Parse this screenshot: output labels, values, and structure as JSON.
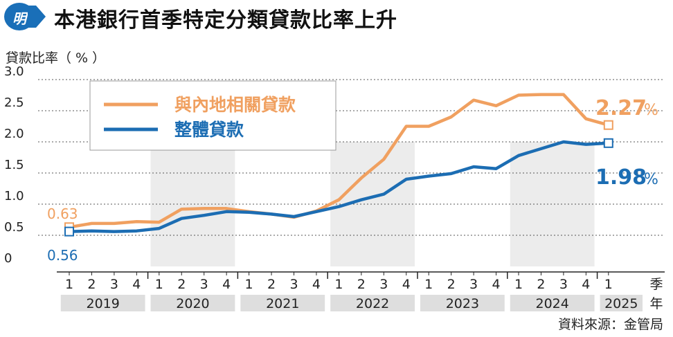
{
  "header": {
    "logo_text": "明",
    "title": "本港銀行首季特定分類貸款比率上升"
  },
  "chart_data": {
    "type": "line",
    "ylabel": "貸款比率（ % ）",
    "ylim": [
      0,
      3.0
    ],
    "yticks": [
      "3.0",
      "2.5",
      "2.0",
      "1.5",
      "1.0",
      "0.5",
      "0"
    ],
    "quarter_labels": [
      "1",
      "2",
      "3",
      "4",
      "1",
      "2",
      "3",
      "4",
      "1",
      "2",
      "3",
      "4",
      "1",
      "2",
      "3",
      "4",
      "1",
      "2",
      "3",
      "4",
      "1",
      "2",
      "3",
      "4",
      "1"
    ],
    "years": [
      "2019",
      "2020",
      "2021",
      "2022",
      "2023",
      "2024",
      "2025"
    ],
    "quarter_unit": "季",
    "year_unit": "年",
    "legend": [
      "與內地相關貸款",
      "整體貸款"
    ],
    "series": [
      {
        "name": "與內地相關貸款",
        "color": "#f0a060",
        "values": [
          0.63,
          0.69,
          0.69,
          0.72,
          0.71,
          0.92,
          0.93,
          0.93,
          0.88,
          0.84,
          0.79,
          0.89,
          1.07,
          1.42,
          1.72,
          2.25,
          2.25,
          2.4,
          2.67,
          2.58,
          2.75,
          2.76,
          2.76,
          2.37,
          2.27
        ]
      },
      {
        "name": "整體貸款",
        "color": "#1c6db3",
        "values": [
          0.56,
          0.57,
          0.56,
          0.57,
          0.61,
          0.77,
          0.82,
          0.88,
          0.87,
          0.84,
          0.8,
          0.88,
          0.96,
          1.07,
          1.16,
          1.4,
          1.45,
          1.49,
          1.6,
          1.57,
          1.78,
          1.89,
          2.0,
          1.96,
          1.98
        ]
      }
    ],
    "annotations": {
      "start_orange": "0.63",
      "start_blue": "0.56",
      "end_orange": "2.27",
      "end_blue": "1.98",
      "pct": "%"
    },
    "source": "資料來源：金管局"
  }
}
